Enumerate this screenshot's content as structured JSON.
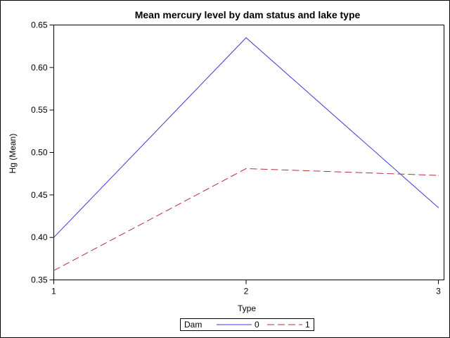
{
  "chart_data": {
    "type": "line",
    "title": "Mean mercury level by dam status and lake type",
    "xlabel": "Type",
    "ylabel": "Hg (Mean)",
    "x": [
      1,
      2,
      3
    ],
    "x_ticks": [
      "1",
      "2",
      "3"
    ],
    "ylim": [
      0.35,
      0.65
    ],
    "y_ticks": [
      "0.35",
      "0.40",
      "0.45",
      "0.50",
      "0.55",
      "0.60",
      "0.65"
    ],
    "grid": false,
    "legend": {
      "title": "Dam",
      "placement": "bottom-center"
    },
    "series": [
      {
        "name": "0",
        "values": [
          0.4,
          0.635,
          0.435
        ],
        "color": "#3b3bd6",
        "dash": "solid"
      },
      {
        "name": "1",
        "values": [
          0.361,
          0.481,
          0.473
        ],
        "color": "#b5303a",
        "dash": "dashed"
      }
    ]
  }
}
